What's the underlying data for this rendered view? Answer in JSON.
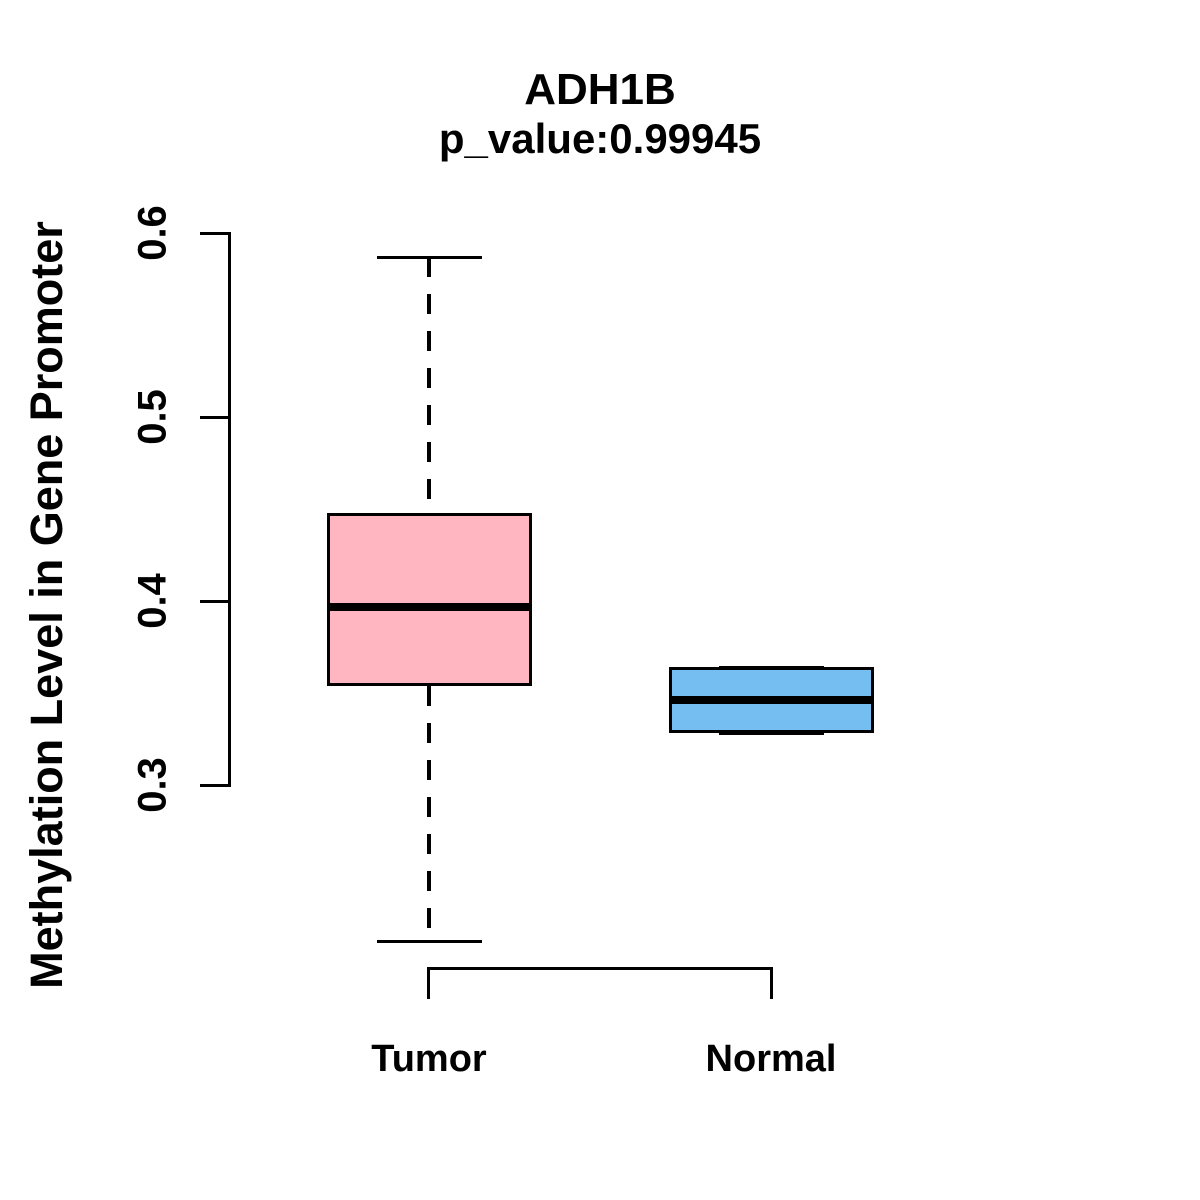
{
  "figure": {
    "title": "ADH1B",
    "subtitle": "p_value:0.99945",
    "y_axis_label": "Methylation Level in Gene Promoter"
  },
  "chart_data": {
    "type": "boxplot",
    "title": "ADH1B",
    "subtitle": "p_value:0.99945",
    "ylabel": "Methylation Level in Gene Promoter",
    "xlabel": "",
    "ylim": [
      0.3,
      0.6
    ],
    "yticks": [
      0.6,
      0.5,
      0.4,
      0.3
    ],
    "ytick_labels": [
      "0.6",
      "0.5",
      "0.4",
      "0.3"
    ],
    "categories": [
      "Tumor",
      "Normal"
    ],
    "grid": false,
    "legend": "none",
    "line_color": "#000000",
    "series": [
      {
        "name": "Tumor",
        "fill_color": "#FFB6C1",
        "border_color": "#000000",
        "whisker_line_style": "dashed",
        "stats": {
          "lower_whisker": 0.215,
          "q1": 0.354,
          "median": 0.397,
          "q3": 0.448,
          "upper_whisker": 0.587
        }
      },
      {
        "name": "Normal",
        "fill_color": "#74BEF2",
        "border_color": "#000000",
        "whisker_line_style": "dashed",
        "stats": {
          "lower_whisker": 0.328,
          "q1": 0.328,
          "median": 0.346,
          "q3": 0.364,
          "upper_whisker": 0.364
        }
      }
    ]
  }
}
